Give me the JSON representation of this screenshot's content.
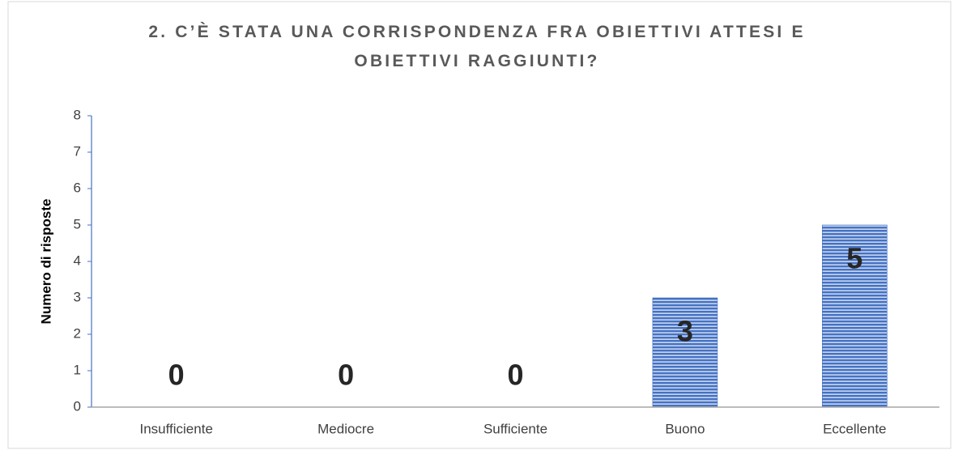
{
  "chart_data": {
    "type": "bar",
    "title": "2. C’È STATA UNA CORRISPONDENZA FRA OBIETTIVI ATTESI E OBIETTIVI RAGGIUNTI?",
    "y_label": "Numero di risposte",
    "categories": [
      "Insufficiente",
      "Mediocre",
      "Sufficiente",
      "Buono",
      "Eccellente"
    ],
    "values": [
      0,
      0,
      0,
      3,
      5
    ],
    "color": "#4472c4",
    "ylim": [
      0,
      8
    ],
    "yticks": [
      0,
      1,
      2,
      3,
      4,
      5,
      6,
      7,
      8
    ],
    "grid": false
  }
}
